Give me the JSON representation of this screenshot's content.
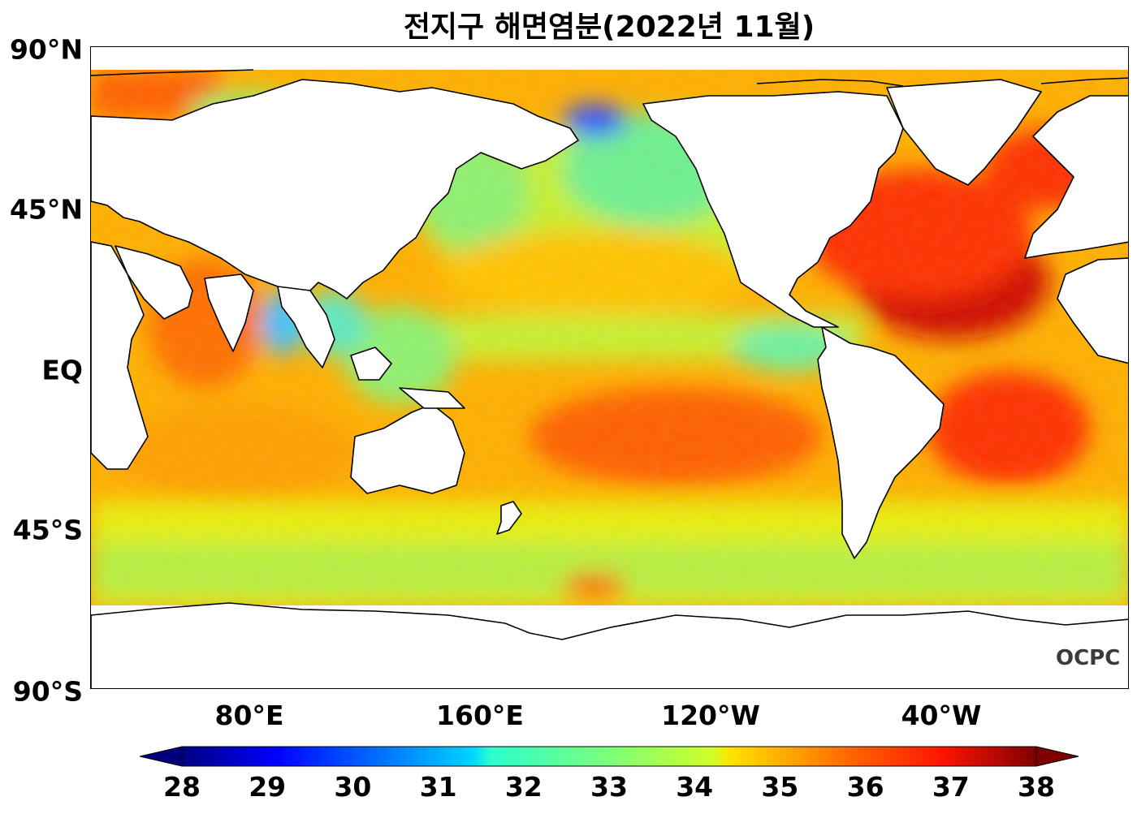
{
  "title": "전지구 해면염분(2022년 11월)",
  "y_ticks": [
    "90°N",
    "45°N",
    "EQ",
    "45°S",
    "90°S"
  ],
  "x_ticks": [
    "80°E",
    "160°E",
    "120°W",
    "40°W"
  ],
  "logo": "OCPC",
  "colorbar": {
    "min": 28,
    "max": 38,
    "ticks": [
      "28",
      "29",
      "30",
      "31",
      "32",
      "33",
      "34",
      "35",
      "36",
      "37",
      "38"
    ],
    "extend": "both",
    "colormap": "jet"
  },
  "colors": {
    "land": "#ffffff",
    "coastline": "#000000"
  }
}
